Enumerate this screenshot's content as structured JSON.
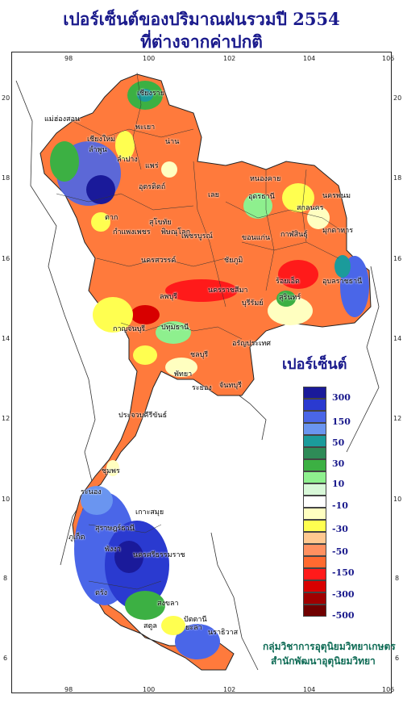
{
  "title_line1": "เปอร์เซ็นต์ของปริมาณฝนรวมปี  2554",
  "title_line2": "ที่ต่างจากค่าปกติ",
  "legend": {
    "title": "เปอร์เซ็นต์",
    "colors": [
      "#1a1a9a",
      "#2a3ad0",
      "#4a66e8",
      "#6a95f0",
      "#1b9b9b",
      "#2e8b57",
      "#3cb043",
      "#8ef08e",
      "#d8f8d8",
      "#ffffff",
      "#ffffc0",
      "#ffff50",
      "#ffc890",
      "#ff9060",
      "#ff6a30",
      "#ff1a1a",
      "#d80000",
      "#a00000",
      "#700000"
    ],
    "labels": [
      "300",
      "150",
      "50",
      "30",
      "10",
      "-10",
      "-30",
      "-50",
      "-150",
      "-300",
      "-500"
    ]
  },
  "axes": {
    "lon": [
      "98",
      "100",
      "102",
      "104",
      "106"
    ],
    "lat": [
      "20",
      "18",
      "16",
      "14",
      "12",
      "10",
      "8",
      "6"
    ]
  },
  "provinces": [
    "เชียงราย",
    "แม่ฮ่องสอน",
    "พะเยา",
    "น่าน",
    "เชียงใหม่",
    "ลำพูน",
    "ลำปาง",
    "แพร่",
    "อุตรดิตถ์",
    "หนองคาย",
    "อุดรธานี",
    "นครพนม",
    "สกลนคร",
    "มุกดาหาร",
    "ตาก",
    "สุโขทัย",
    "พิษณุโลก",
    "เพชรบูรณ์",
    "เลย",
    "ขอนแก่น",
    "กาฬสินธุ์",
    "กำแพงเพชร",
    "นครสวรรค์",
    "ชัยภูมิ",
    "ร้อยเอ็ด",
    "อุบลราชธานี",
    "นครราชสีมา",
    "บุรีรัมย์",
    "สุรินทร์",
    "ลพบุรี",
    "กาญจนบุรี",
    "ปทุมธานี",
    "อรัญประเทศ",
    "ชลบุรี",
    "พัทยา",
    "ระยอง",
    "จันทบุรี",
    "ประจวบคีรีขันธ์",
    "ชุมพร",
    "ระนอง",
    "สุราษฎร์ธานี",
    "เกาะสมุย",
    "ภูเก็ต",
    "พังงา",
    "นครศรีธรรมราช",
    "สงขลา",
    "สตูล",
    "ปัตตานี",
    "นราธิวาส",
    "ยะลา",
    "ตรัง"
  ],
  "credit_line1": "กลุ่มวิชาการอุตุนิยมวิทยาเกษตร",
  "credit_line2": "สำนักพัฒนาอุตุนิยมวิทยา"
}
